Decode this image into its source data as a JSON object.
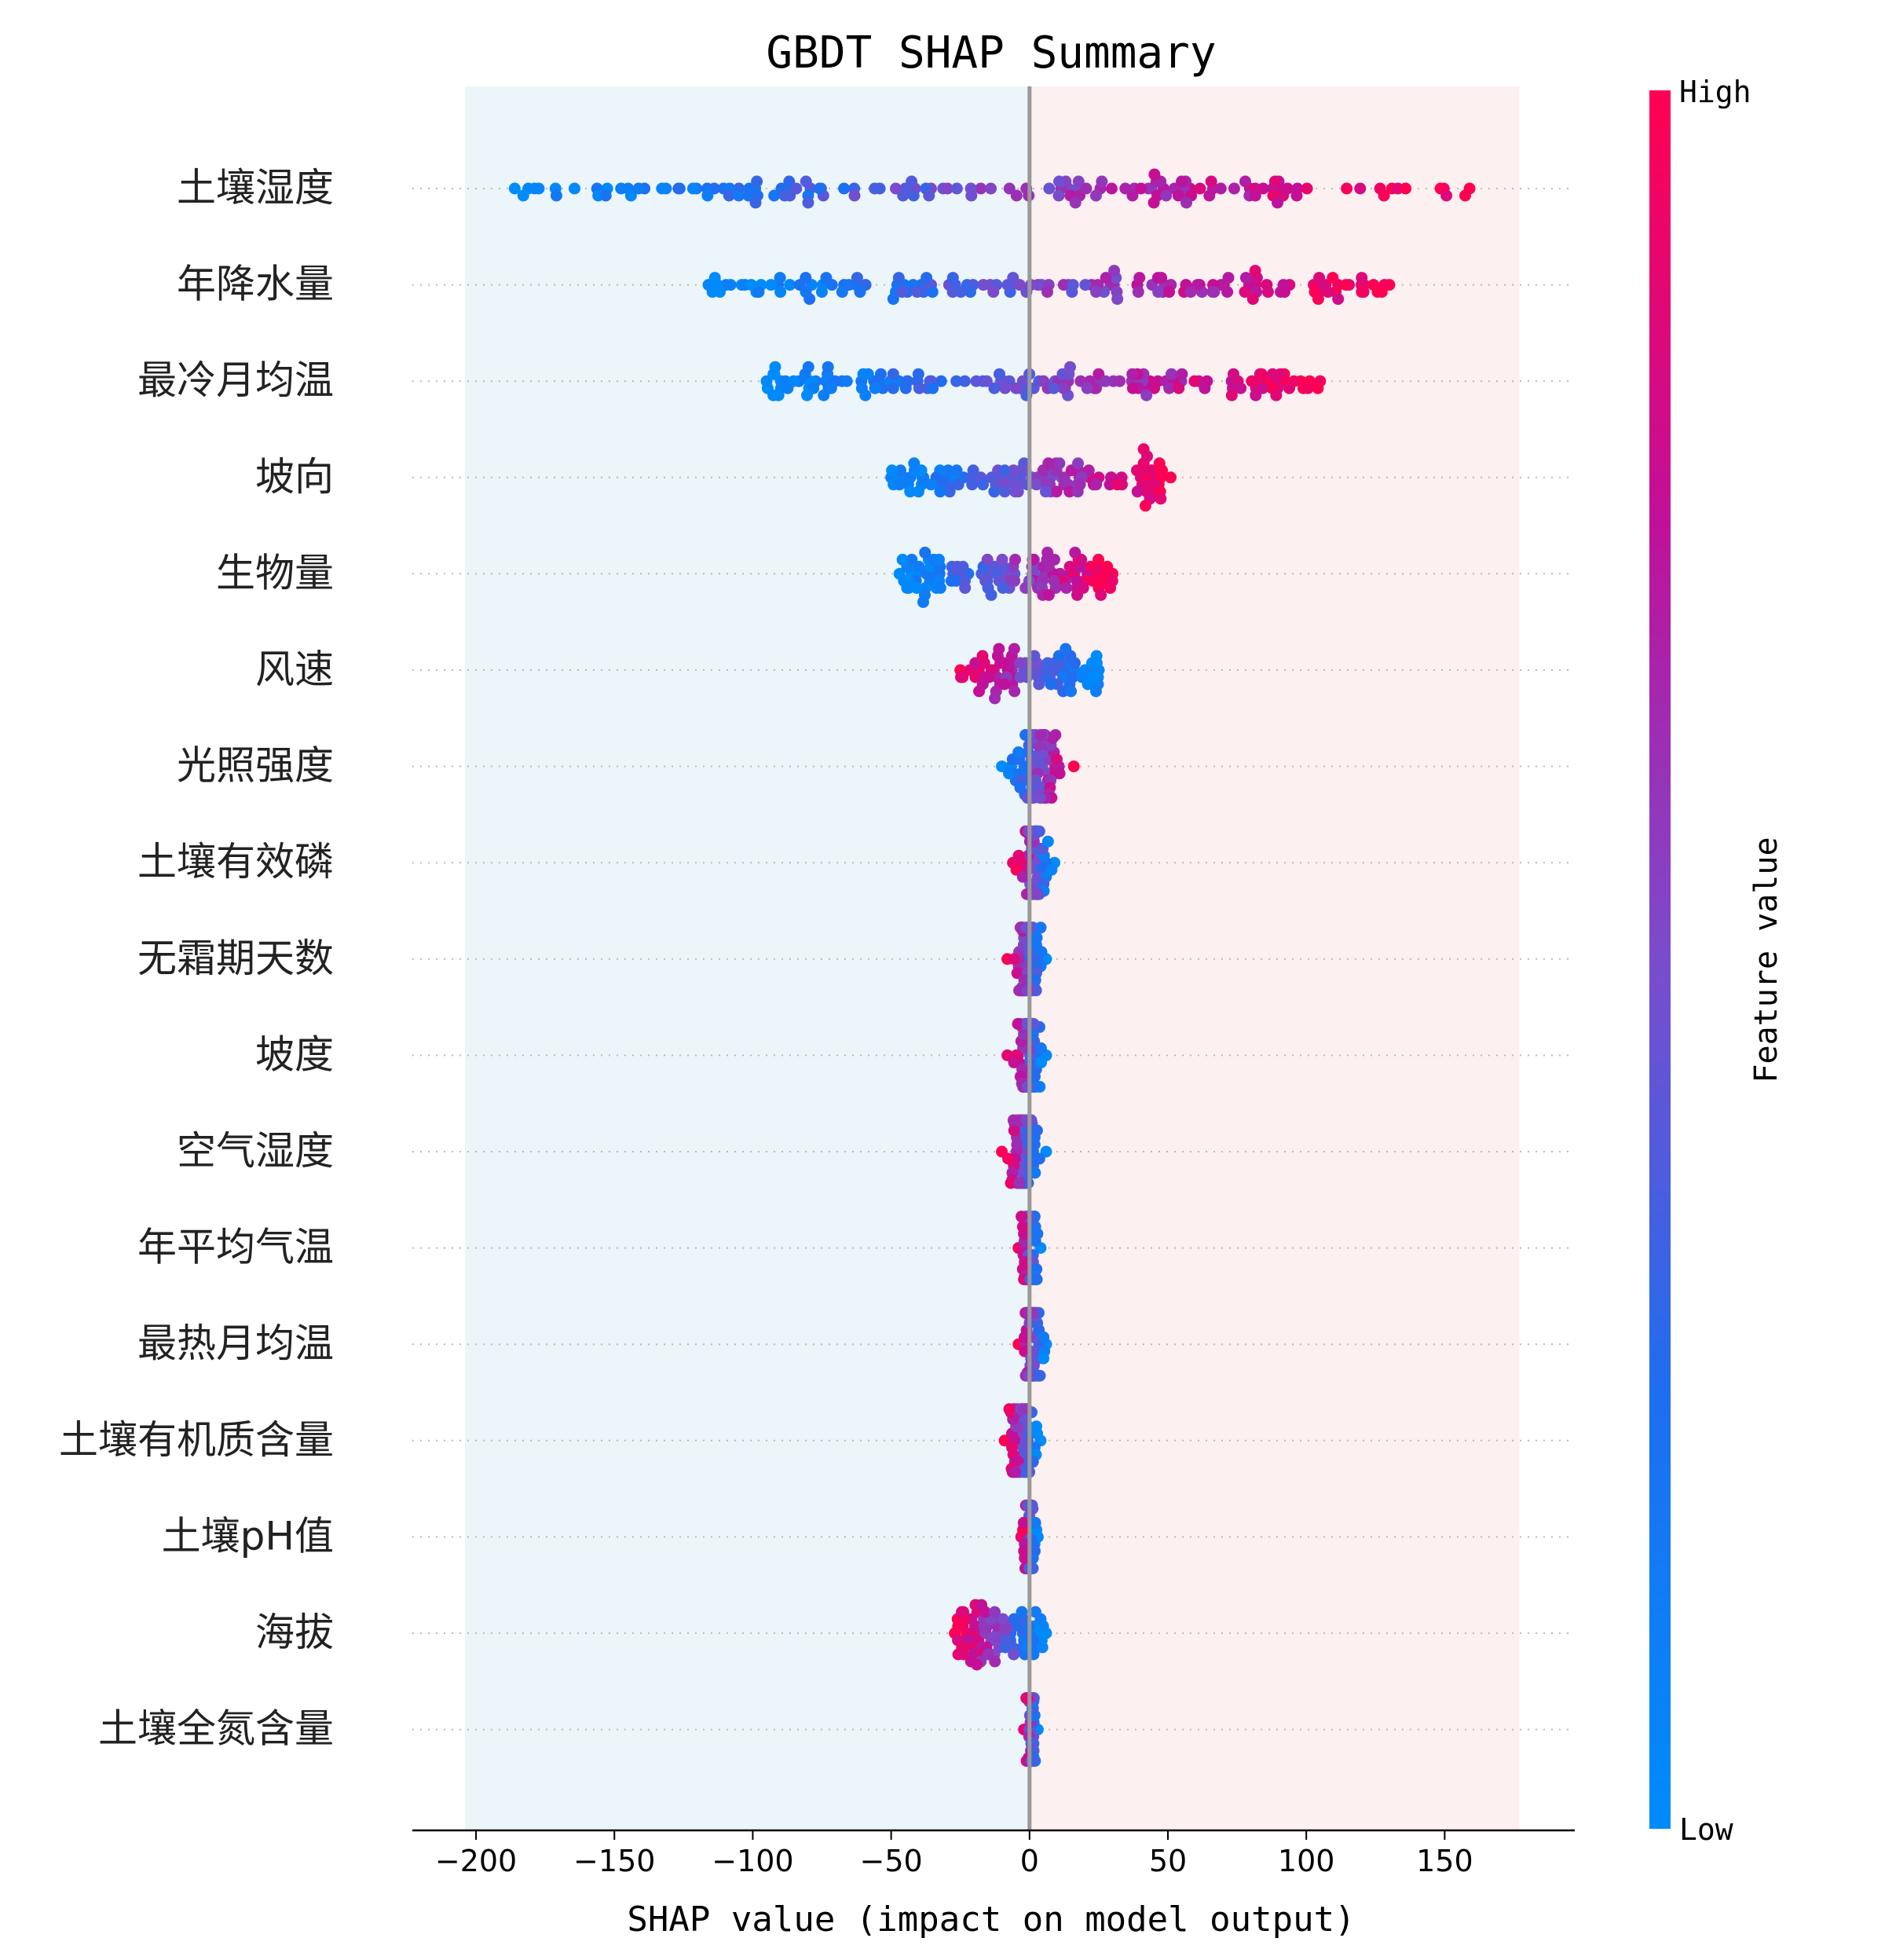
{
  "chart_data": {
    "type": "scatter",
    "title": "GBDT SHAP Summary",
    "xlabel": "SHAP value (impact on model output)",
    "xlim": [
      -223,
      197
    ],
    "xticks": [
      -200,
      -150,
      -100,
      -50,
      0,
      50,
      100,
      150
    ],
    "xtick_labels": [
      "−200",
      "−150",
      "−100",
      "−50",
      "0",
      "50",
      "100",
      "150"
    ],
    "background_regions": [
      {
        "from": -204,
        "to": 0,
        "color": "#ecf5f9"
      },
      {
        "from": 0,
        "to": 177,
        "color": "#fdf0f1"
      }
    ],
    "zero_line": true,
    "colorbar": {
      "label": "Feature value",
      "high_label": "High",
      "low_label": "Low",
      "high_color": "#ff0052",
      "mid_color": "#c0109a",
      "low_mid_color": "#1e6ef0",
      "low_color": "#008bfb"
    },
    "features": [
      {
        "name": "土壤湿度",
        "min": -186,
        "max": 159
      },
      {
        "name": "年降水量",
        "min": -116,
        "max": 130
      },
      {
        "name": "最冷月均温",
        "min": -95,
        "max": 105
      },
      {
        "name": "坡向",
        "min": -50,
        "max": 51
      },
      {
        "name": "生物量",
        "min": -47,
        "max": 30
      },
      {
        "name": "风速",
        "min": -25,
        "max": 25
      },
      {
        "name": "光照强度",
        "min": -10,
        "max": 16
      },
      {
        "name": "土壤有效磷",
        "min": -6,
        "max": 9
      },
      {
        "name": "无霜期天数",
        "min": -8,
        "max": 6
      },
      {
        "name": "坡度",
        "min": -8,
        "max": 6
      },
      {
        "name": "空气湿度",
        "min": -10,
        "max": 6
      },
      {
        "name": "年平均气温",
        "min": -4,
        "max": 4
      },
      {
        "name": "最热月均温",
        "min": -4,
        "max": 6
      },
      {
        "name": "土壤有机质含量",
        "min": -9,
        "max": 4
      },
      {
        "name": "土壤pH值",
        "min": -3,
        "max": 3
      },
      {
        "name": "海拔",
        "min": -27,
        "max": 6
      },
      {
        "name": "土壤全氮含量",
        "min": -2,
        "max": 3
      }
    ]
  }
}
